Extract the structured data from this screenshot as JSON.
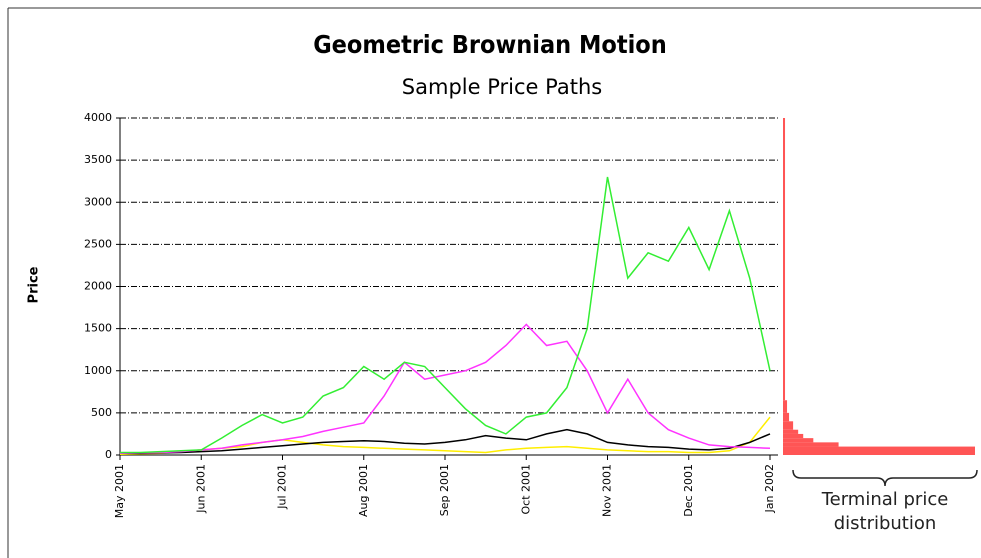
{
  "chart_data": [
    {
      "type": "line",
      "title": "Geometric Brownian Motion",
      "subtitle": "Sample Price Paths",
      "y_label": "Price",
      "x": [
        0,
        0.25,
        0.5,
        0.75,
        1,
        1.25,
        1.5,
        1.75,
        2,
        2.25,
        2.5,
        2.75,
        3,
        3.25,
        3.5,
        3.75,
        4,
        4.25,
        4.5,
        4.75,
        5,
        5.25,
        5.5,
        5.75,
        6,
        6.25,
        6.5,
        6.75,
        7,
        7.25,
        7.5,
        7.75,
        8
      ],
      "xlim": [
        0,
        8
      ],
      "xticks": [
        {
          "value": 0,
          "label": "May 2001"
        },
        {
          "value": 1,
          "label": "Jun 2001"
        },
        {
          "value": 2,
          "label": "Jul 2001"
        },
        {
          "value": 3,
          "label": "Aug 2001"
        },
        {
          "value": 4,
          "label": "Sep 2001"
        },
        {
          "value": 5,
          "label": "Oct 2001"
        },
        {
          "value": 6,
          "label": "Nov 2001"
        },
        {
          "value": 7,
          "label": "Dec 2001"
        },
        {
          "value": 8,
          "label": "Jan 2002"
        }
      ],
      "ylim": [
        0,
        4000
      ],
      "yticks": [
        0,
        500,
        1000,
        1500,
        2000,
        2500,
        3000,
        3500,
        4000
      ],
      "grid": true,
      "series": [
        {
          "color": "#ffee00",
          "values": [
            10,
            15,
            20,
            40,
            60,
            80,
            100,
            150,
            180,
            150,
            120,
            100,
            90,
            80,
            70,
            60,
            50,
            40,
            30,
            60,
            80,
            90,
            100,
            80,
            60,
            50,
            40,
            40,
            30,
            30,
            50,
            150,
            450
          ]
        },
        {
          "color": "#000000",
          "values": [
            20,
            20,
            25,
            30,
            40,
            50,
            70,
            90,
            110,
            130,
            150,
            160,
            170,
            160,
            140,
            130,
            150,
            180,
            230,
            200,
            180,
            250,
            300,
            250,
            150,
            120,
            100,
            90,
            70,
            60,
            80,
            150,
            250
          ]
        },
        {
          "color": "#ff33ff",
          "values": [
            20,
            25,
            30,
            40,
            60,
            80,
            120,
            150,
            180,
            220,
            280,
            330,
            380,
            700,
            1100,
            900,
            950,
            1000,
            1100,
            1300,
            1550,
            1300,
            1350,
            1000,
            500,
            900,
            500,
            300,
            200,
            120,
            100,
            90,
            80
          ]
        },
        {
          "color": "#33ee33",
          "values": [
            30,
            30,
            40,
            50,
            60,
            200,
            350,
            480,
            380,
            450,
            700,
            800,
            1050,
            900,
            1100,
            1050,
            800,
            550,
            350,
            250,
            450,
            500,
            800,
            1500,
            3300,
            2100,
            2400,
            2300,
            2700,
            2200,
            2900,
            2100,
            1000
          ]
        }
      ]
    },
    {
      "type": "histogram",
      "annotation": "Terminal price distribution",
      "color": "#ff5555",
      "bins": [
        0,
        100,
        150,
        200,
        250,
        300,
        400,
        500,
        650,
        4000
      ],
      "counts": [
        190,
        55,
        30,
        20,
        15,
        10,
        6,
        4,
        2
      ],
      "xlim": [
        0,
        190
      ]
    }
  ]
}
